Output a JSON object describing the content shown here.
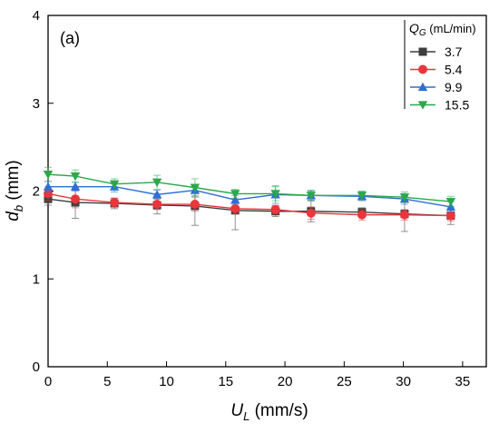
{
  "chart_data": {
    "type": "line",
    "panel_label": "(a)",
    "xlabel": {
      "main": "U",
      "sub": "L",
      "unit": " (mm/s)"
    },
    "ylabel": {
      "main": "d",
      "sub": "b",
      "unit": " (mm)"
    },
    "xlim": [
      0,
      37
    ],
    "ylim": [
      0,
      4
    ],
    "xticks": [
      0,
      5,
      10,
      15,
      20,
      25,
      30,
      35
    ],
    "yticks": [
      0,
      1,
      2,
      3,
      4
    ],
    "grid": false,
    "legend": {
      "placement": "top-right",
      "title_main": "Q",
      "title_sub": "G",
      "title_unit": " (mL/min)"
    },
    "x": [
      0,
      2.3,
      5.6,
      9.2,
      12.4,
      15.8,
      19.2,
      22.2,
      26.5,
      30.1,
      34.0
    ],
    "series": [
      {
        "name": "3.7",
        "color": "#3d3d3d",
        "marker": "square",
        "values": [
          1.91,
          1.87,
          1.86,
          1.84,
          1.83,
          1.78,
          1.77,
          1.77,
          1.76,
          1.74,
          1.72
        ],
        "errors": [
          0.07,
          0.18,
          0.06,
          0.1,
          0.22,
          0.22,
          0.06,
          0.12,
          0.05,
          0.2,
          0.1
        ]
      },
      {
        "name": "5.4",
        "color": "#e8363b",
        "marker": "circle",
        "values": [
          1.97,
          1.91,
          1.87,
          1.85,
          1.85,
          1.8,
          1.79,
          1.75,
          1.73,
          1.73,
          1.72
        ],
        "errors": [
          0.08,
          0.1,
          0.05,
          0.06,
          0.08,
          0.06,
          0.05,
          0.07,
          0.06,
          0.06,
          0.06
        ]
      },
      {
        "name": "9.9",
        "color": "#2d6fd6",
        "marker": "triangle-up",
        "values": [
          2.05,
          2.05,
          2.05,
          1.96,
          2.01,
          1.9,
          1.96,
          1.95,
          1.94,
          1.91,
          1.82
        ],
        "errors": [
          0.06,
          0.05,
          0.06,
          0.05,
          0.06,
          0.05,
          0.1,
          0.06,
          0.05,
          0.06,
          0.06
        ]
      },
      {
        "name": "15.5",
        "color": "#2ba84a",
        "marker": "triangle-down",
        "values": [
          2.19,
          2.17,
          2.08,
          2.1,
          2.04,
          1.97,
          1.97,
          1.95,
          1.95,
          1.93,
          1.88
        ],
        "errors": [
          0.08,
          0.07,
          0.06,
          0.08,
          0.1,
          0.05,
          0.08,
          0.05,
          0.05,
          0.06,
          0.06
        ]
      }
    ]
  }
}
